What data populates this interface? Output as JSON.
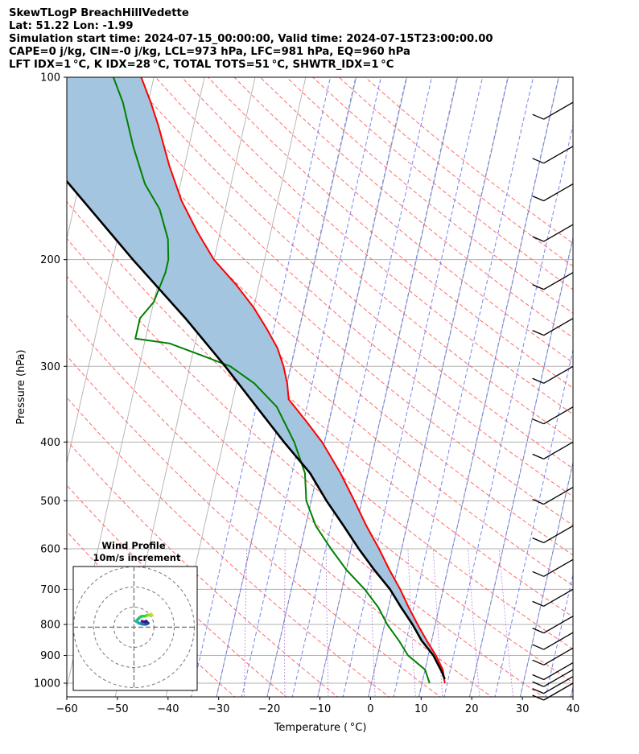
{
  "header": {
    "lines": [
      "SkewTLogP BreachHillVedette",
      "Lat: 51.22   Lon: -1.99",
      "Simulation start time: 2024-07-15_00:00:00, Valid time: 2024-07-15T23:00:00.00",
      "CAPE=0 j/kg, CIN=-0 j/kg, LCL=973 hPa, LFC=981 hPa, EQ=960 hPa",
      "LFT IDX=1 °C, K IDX=28 °C, TOTAL TOTS=51 °C, SHWTR_IDX=1 °C"
    ]
  },
  "chart_data": {
    "type": "skewt",
    "xlabel": "Temperature ( °C)",
    "ylabel": "Pressure (hPa)",
    "xlim": [
      -60,
      40
    ],
    "ylim": [
      1050,
      100
    ],
    "x_ticks": [
      -60,
      -50,
      -40,
      -30,
      -20,
      -10,
      0,
      10,
      20,
      30,
      40
    ],
    "p_ticks": [
      1000,
      900,
      800,
      700,
      600,
      500,
      400,
      300,
      200,
      100
    ],
    "y_scale": "log",
    "grid": true,
    "temperature": {
      "color": "#ff0000",
      "points": [
        [
          1000,
          14.5
        ],
        [
          950,
          13.5
        ],
        [
          900,
          11.5
        ],
        [
          850,
          9.0
        ],
        [
          800,
          6.5
        ],
        [
          750,
          4.0
        ],
        [
          700,
          1.5
        ],
        [
          650,
          -1.5
        ],
        [
          600,
          -4.5
        ],
        [
          550,
          -8.0
        ],
        [
          500,
          -11.5
        ],
        [
          450,
          -15.5
        ],
        [
          400,
          -20.5
        ],
        [
          370,
          -24.5
        ],
        [
          340,
          -29.0
        ],
        [
          320,
          -30.0
        ],
        [
          300,
          -31.5
        ],
        [
          280,
          -33.5
        ],
        [
          260,
          -36.5
        ],
        [
          240,
          -40.0
        ],
        [
          220,
          -44.5
        ],
        [
          200,
          -50.0
        ],
        [
          180,
          -54.5
        ],
        [
          160,
          -59.0
        ],
        [
          140,
          -63.0
        ],
        [
          120,
          -67.0
        ],
        [
          110,
          -69.5
        ],
        [
          100,
          -72.5
        ]
      ]
    },
    "dewpoint": {
      "color": "#008000",
      "points": [
        [
          1000,
          11.5
        ],
        [
          950,
          10.0
        ],
        [
          900,
          6.0
        ],
        [
          850,
          3.5
        ],
        [
          800,
          0.5
        ],
        [
          750,
          -2.0
        ],
        [
          700,
          -5.5
        ],
        [
          650,
          -10.0
        ],
        [
          600,
          -14.0
        ],
        [
          550,
          -18.0
        ],
        [
          500,
          -21.0
        ],
        [
          450,
          -22.5
        ],
        [
          400,
          -26.0
        ],
        [
          350,
          -31.0
        ],
        [
          320,
          -36.5
        ],
        [
          300,
          -42.0
        ],
        [
          290,
          -47.0
        ],
        [
          275,
          -55.0
        ],
        [
          270,
          -62.0
        ],
        [
          250,
          -62.0
        ],
        [
          235,
          -60.0
        ],
        [
          210,
          -59.0
        ],
        [
          200,
          -59.0
        ],
        [
          185,
          -60.0
        ],
        [
          165,
          -63.0
        ],
        [
          150,
          -67.0
        ],
        [
          130,
          -71.0
        ],
        [
          110,
          -75.0
        ],
        [
          100,
          -78.0
        ]
      ]
    },
    "parcel": {
      "color": "#000000",
      "points": [
        [
          985,
          14.3
        ],
        [
          960,
          13.5
        ],
        [
          900,
          11.0
        ],
        [
          850,
          8.0
        ],
        [
          800,
          5.5
        ],
        [
          750,
          2.5
        ],
        [
          700,
          -0.5
        ],
        [
          650,
          -4.5
        ],
        [
          600,
          -8.5
        ],
        [
          550,
          -12.5
        ],
        [
          500,
          -17.0
        ],
        [
          450,
          -21.5
        ],
        [
          400,
          -28.0
        ],
        [
          350,
          -35.0
        ],
        [
          300,
          -43.0
        ],
        [
          250,
          -53.0
        ],
        [
          200,
          -66.0
        ],
        [
          150,
          -82.0
        ],
        [
          100,
          -105.0
        ]
      ]
    },
    "shading_color": "#a3c5df",
    "wind_barbs": [
      {
        "p": 1000,
        "speed_kt": 10,
        "dir_deg": 240
      },
      {
        "p": 975,
        "speed_kt": 10,
        "dir_deg": 240
      },
      {
        "p": 950,
        "speed_kt": 10,
        "dir_deg": 240
      },
      {
        "p": 925,
        "speed_kt": 10,
        "dir_deg": 240
      },
      {
        "p": 875,
        "speed_kt": 10,
        "dir_deg": 240
      },
      {
        "p": 825,
        "speed_kt": 10,
        "dir_deg": 240
      },
      {
        "p": 775,
        "speed_kt": 10,
        "dir_deg": 240
      },
      {
        "p": 700,
        "speed_kt": 10,
        "dir_deg": 240
      },
      {
        "p": 625,
        "speed_kt": 10,
        "dir_deg": 240
      },
      {
        "p": 550,
        "speed_kt": 10,
        "dir_deg": 240
      },
      {
        "p": 475,
        "speed_kt": 10,
        "dir_deg": 240
      },
      {
        "p": 400,
        "speed_kt": 10,
        "dir_deg": 240
      },
      {
        "p": 350,
        "speed_kt": 10,
        "dir_deg": 240
      },
      {
        "p": 300,
        "speed_kt": 10,
        "dir_deg": 240
      },
      {
        "p": 250,
        "speed_kt": 10,
        "dir_deg": 240
      },
      {
        "p": 210,
        "speed_kt": 10,
        "dir_deg": 240
      },
      {
        "p": 175,
        "speed_kt": 10,
        "dir_deg": 240
      },
      {
        "p": 150,
        "speed_kt": 10,
        "dir_deg": 240
      },
      {
        "p": 130,
        "speed_kt": 10,
        "dir_deg": 240
      },
      {
        "p": 110,
        "speed_kt": 10,
        "dir_deg": 240
      }
    ],
    "hodograph": {
      "title": "Wind Profile",
      "subtitle": "10m/s increment",
      "rings_ms": [
        10,
        20,
        30
      ],
      "points": [
        [
          4,
          3
        ],
        [
          5,
          2.5
        ],
        [
          6,
          3
        ],
        [
          7,
          2
        ],
        [
          6,
          1.5
        ],
        [
          4.5,
          1.5
        ],
        [
          2.5,
          2
        ],
        [
          1,
          3
        ],
        [
          2,
          4
        ],
        [
          3,
          5
        ],
        [
          4,
          5.5
        ],
        [
          5.5,
          5.5
        ],
        [
          6.5,
          6
        ],
        [
          7.5,
          6
        ],
        [
          8.5,
          6.5
        ],
        [
          9,
          6
        ]
      ]
    }
  }
}
